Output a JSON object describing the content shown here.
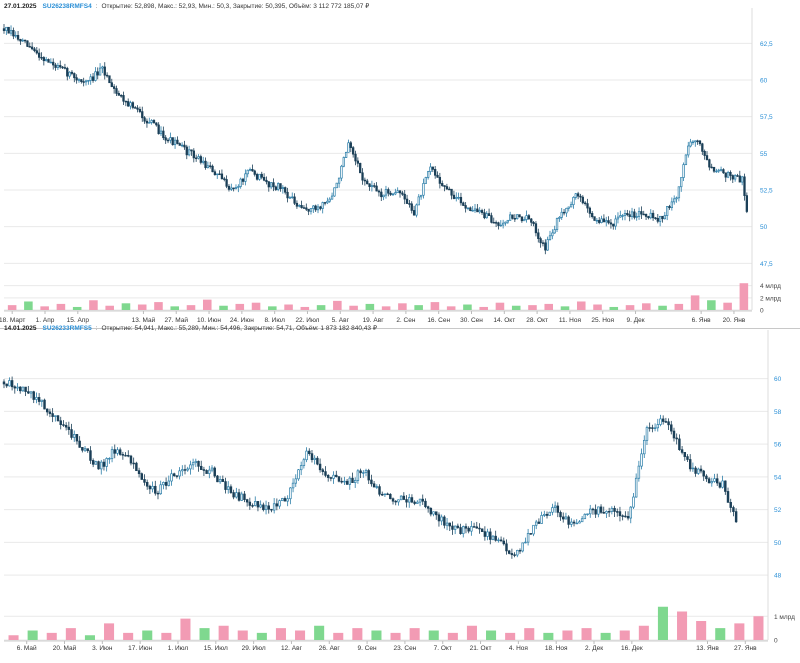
{
  "colors": {
    "up": "#2a7da8",
    "down": "#1b3f57",
    "vol_up": "#7fd88f",
    "vol_down": "#f29bb4",
    "grid": "#e9e9e9",
    "axis_text": "#2a8fd6"
  },
  "chart_data": [
    {
      "type": "candlestick",
      "header": {
        "date": "27.01.2025",
        "ticker": "SU26238RMFS4",
        "sep": ":",
        "stats": "Открытие: 52,898, Макс.: 52,93, Мин.: 50,3, Закрытие: 50,395, Объём: 3 112 772 185,07 ₽"
      },
      "ylim": [
        46.5,
        64.5
      ],
      "yticks": [
        "62,5",
        "60",
        "57,5",
        "55",
        "52,5",
        "50",
        "47,5"
      ],
      "ytick_values": [
        62.5,
        60,
        57.5,
        55,
        52.5,
        50,
        47.5
      ],
      "vol_ticks": [
        "4 млрд",
        "2 млрд",
        "0"
      ],
      "vol_tick_values": [
        4,
        2,
        0
      ],
      "vol_max": 4.6,
      "xticks": [
        "18. Март",
        "1. Апр",
        "15. Апр",
        "13. Май",
        "27. Май",
        "10. Июн",
        "24. Июн",
        "8. Июл",
        "22. Июл",
        "5. Авг",
        "19. Авг",
        "2. Сен",
        "16. Сен",
        "30. Сен",
        "14. Окт",
        "28. Окт",
        "11. Ноя",
        "25. Ноя",
        "9. Дек",
        "6. Янв",
        "20. Янв"
      ],
      "xtick_pos": [
        0.5,
        2.5,
        4.5,
        8.5,
        10.5,
        12.5,
        14.5,
        16.5,
        18.5,
        20.5,
        22.5,
        24.5,
        26.5,
        28.5,
        30.5,
        32.5,
        34.5,
        36.5,
        38.5,
        42.5,
        44.5
      ],
      "x_span": 45.6,
      "anchors": [
        [
          0,
          63.5
        ],
        [
          3,
          61
        ],
        [
          5,
          59.8
        ],
        [
          6,
          60.7
        ],
        [
          7,
          59
        ],
        [
          8,
          58
        ],
        [
          10,
          56
        ],
        [
          12,
          54.5
        ],
        [
          13,
          53.5
        ],
        [
          14,
          52.5
        ],
        [
          15,
          53.8
        ],
        [
          16,
          53
        ],
        [
          17,
          52.6
        ],
        [
          18,
          51.2
        ],
        [
          19,
          51.2
        ],
        [
          20,
          52
        ],
        [
          21,
          55.5
        ],
        [
          22,
          53
        ],
        [
          23,
          52.2
        ],
        [
          24,
          52.5
        ],
        [
          25,
          51
        ],
        [
          26,
          54
        ],
        [
          27,
          52.5
        ],
        [
          28,
          51.5
        ],
        [
          29,
          51
        ],
        [
          30,
          50.2
        ],
        [
          31,
          50.7
        ],
        [
          32,
          50.5
        ],
        [
          33,
          48.6
        ],
        [
          34,
          51
        ],
        [
          35,
          52.2
        ],
        [
          36,
          50.5
        ],
        [
          37,
          50.2
        ],
        [
          38,
          50.8
        ],
        [
          39,
          51
        ],
        [
          40,
          50.5
        ],
        [
          41,
          52
        ],
        [
          41.8,
          56
        ],
        [
          42.5,
          55.5
        ],
        [
          43,
          54.2
        ],
        [
          44,
          53.6
        ],
        [
          45,
          53.2
        ],
        [
          45.4,
          50.4
        ]
      ],
      "vols": [
        0.8,
        1.4,
        0.6,
        1.0,
        0.5,
        1.6,
        0.7,
        1.1,
        0.9,
        1.3,
        0.6,
        0.8,
        1.7,
        0.7,
        1.0,
        1.2,
        0.6,
        0.9,
        0.5,
        0.8,
        1.5,
        0.7,
        1.0,
        0.6,
        1.1,
        0.8,
        1.3,
        0.6,
        0.9,
        0.5,
        1.2,
        0.7,
        0.8,
        1.0,
        0.6,
        1.4,
        0.9,
        0.5,
        0.8,
        1.1,
        0.7,
        1.0,
        2.4,
        1.6,
        1.2,
        4.4
      ],
      "seed": 7
    },
    {
      "type": "candlestick",
      "header": {
        "date": "14.01.2025",
        "ticker": "SU26233RMFS5",
        "sep": ":",
        "stats": "Открытие: 54,941, Макс.: 55,289, Мин.: 54,496, Закрытие: 54,71, Объём: 1 873 182 840,43 ₽"
      },
      "ylim": [
        46.6,
        62.6
      ],
      "yticks": [
        "60",
        "58",
        "56",
        "54",
        "52",
        "50",
        "48"
      ],
      "ytick_values": [
        60,
        58,
        56,
        54,
        52,
        50,
        48
      ],
      "vol_ticks": [
        "1 млрд",
        "0"
      ],
      "vol_tick_values": [
        1,
        0
      ],
      "vol_max": 1.6,
      "xticks": [
        "6. Май",
        "20. Май",
        "3. Июн",
        "17. Июн",
        "1. Июл",
        "15. Июл",
        "29. Июл",
        "12. Авг",
        "26. Авг",
        "9. Сен",
        "23. Сен",
        "7. Окт",
        "21. Окт",
        "4. Ноя",
        "18. Ноя",
        "2. Дек",
        "16. Дек",
        "13. Янв",
        "27. Янв"
      ],
      "xtick_pos": [
        1.2,
        3.2,
        5.2,
        7.2,
        9.2,
        11.2,
        13.2,
        15.2,
        17.2,
        19.2,
        21.2,
        23.2,
        25.2,
        27.2,
        29.2,
        31.2,
        33.2,
        37.2,
        39.2
      ],
      "x_span": 40.4,
      "anchors": [
        [
          0,
          59.8
        ],
        [
          1,
          59.3
        ],
        [
          2,
          58.5
        ],
        [
          3,
          57.2
        ],
        [
          4,
          56
        ],
        [
          5,
          54.5
        ],
        [
          6,
          55.8
        ],
        [
          7,
          54.5
        ],
        [
          8,
          53
        ],
        [
          9,
          54.2
        ],
        [
          10,
          54.8
        ],
        [
          11,
          54.3
        ],
        [
          12,
          53
        ],
        [
          13,
          52.5
        ],
        [
          14,
          52
        ],
        [
          15,
          52.8
        ],
        [
          16,
          55.6
        ],
        [
          17,
          54.2
        ],
        [
          18,
          53.5
        ],
        [
          19,
          54.4
        ],
        [
          20,
          52.8
        ],
        [
          21,
          52.6
        ],
        [
          22,
          52.5
        ],
        [
          23,
          51.5
        ],
        [
          24,
          50.7
        ],
        [
          25,
          50.9
        ],
        [
          26,
          50.2
        ],
        [
          27,
          49
        ],
        [
          28,
          51
        ],
        [
          29,
          52.2
        ],
        [
          30,
          51
        ],
        [
          31,
          51.8
        ],
        [
          32,
          52.1
        ],
        [
          33,
          51.3
        ],
        [
          34,
          57
        ],
        [
          35,
          57.5
        ],
        [
          36,
          55
        ],
        [
          37,
          54
        ],
        [
          38,
          53.5
        ],
        [
          38.8,
          51.2
        ]
      ],
      "vols": [
        0.2,
        0.4,
        0.3,
        0.5,
        0.2,
        0.7,
        0.3,
        0.4,
        0.3,
        0.9,
        0.5,
        0.6,
        0.4,
        0.3,
        0.5,
        0.4,
        0.6,
        0.3,
        0.5,
        0.4,
        0.3,
        0.5,
        0.4,
        0.3,
        0.6,
        0.4,
        0.3,
        0.5,
        0.3,
        0.4,
        0.5,
        0.3,
        0.4,
        0.6,
        1.4,
        1.2,
        0.8,
        0.5,
        0.7,
        1.0
      ],
      "seed": 13
    }
  ]
}
